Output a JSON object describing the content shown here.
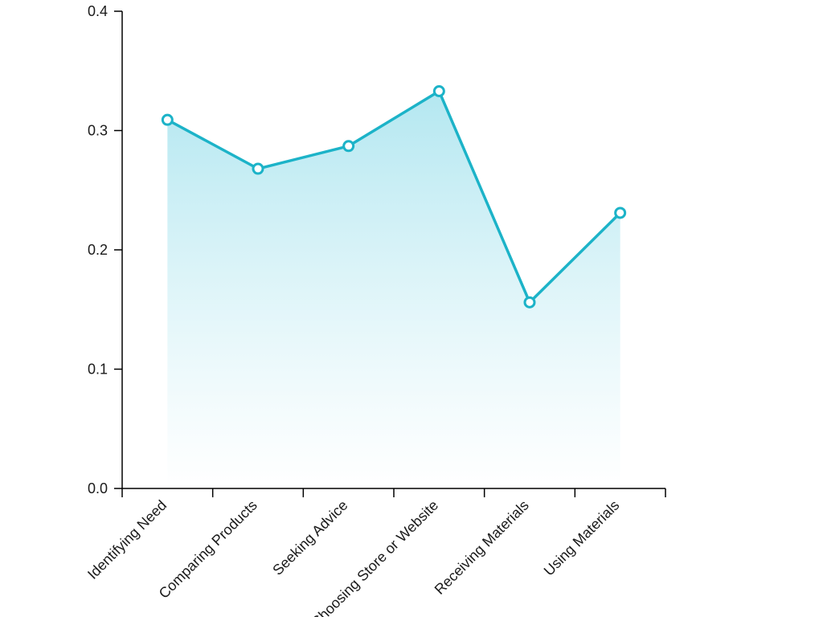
{
  "chart_data": {
    "type": "area",
    "categories": [
      "Identifying Need",
      "Comparing Products",
      "Seeking Advice",
      "Choosing Store or Website",
      "Receiving Materials",
      "Using Materials"
    ],
    "series": [
      {
        "values": [
          0.309,
          0.268,
          0.287,
          0.333,
          0.156,
          0.231
        ]
      }
    ],
    "ylim": [
      0,
      0.4
    ],
    "yticks": [
      "0.0",
      "0.1",
      "0.2",
      "0.3",
      "0.4"
    ],
    "title": "",
    "xlabel": "",
    "ylabel": "",
    "grid": false,
    "colors": {
      "line": "#1cb3c8",
      "fill_top": "#a6e3ee",
      "fill_bottom": "#ffffff",
      "point_fill": "#ffffff",
      "axis": "#000000"
    }
  }
}
